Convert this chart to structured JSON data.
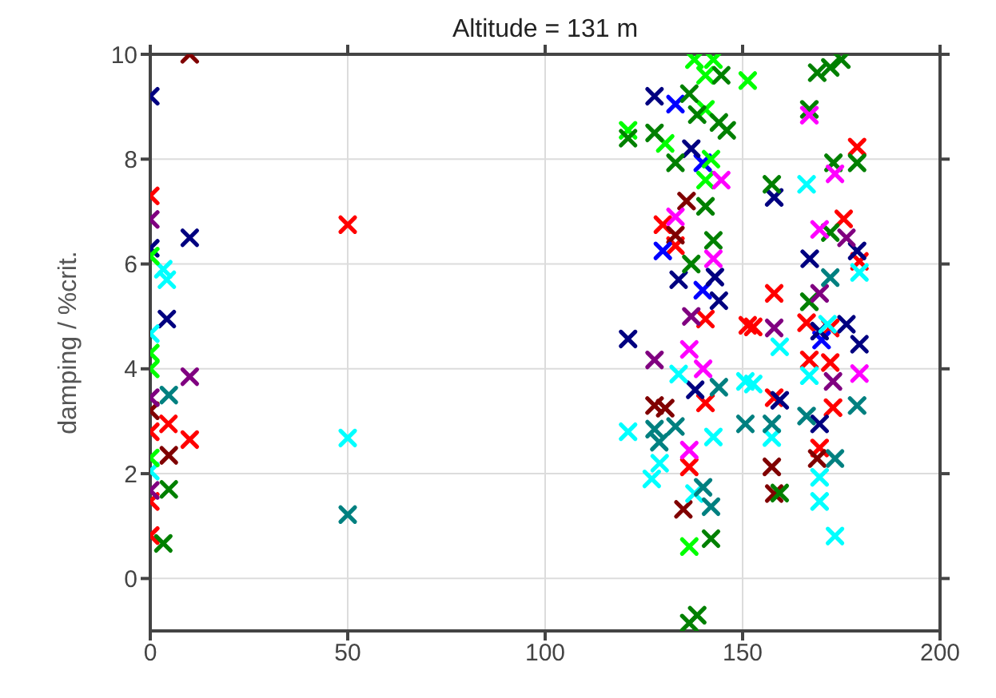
{
  "chart_data": {
    "type": "scatter",
    "title": "Altitude = 131 m",
    "ylabel": "damping / %crit.",
    "xlim": [
      0,
      200
    ],
    "xticks": [
      0,
      50,
      100,
      150,
      200
    ],
    "ylim": [
      -1,
      10
    ],
    "yticks": [
      0,
      2,
      4,
      6,
      8,
      10
    ],
    "grid": true,
    "marker": "cross",
    "series": [
      {
        "color": "#ff0000",
        "x": [
          0,
          0,
          0,
          0,
          4.6,
          10,
          50,
          129.8,
          133,
          140.6,
          151.3,
          140.6,
          136.5,
          158,
          152.7,
          166.2,
          172.2,
          175.6,
          179,
          179.6,
          166.9,
          172.2,
          158,
          172.9,
          169.5
        ],
        "values": [
          7.3,
          2.8,
          1.47,
          0.82,
          2.95,
          2.65,
          6.75,
          6.75,
          6.35,
          4.95,
          4.83,
          3.35,
          2.13,
          5.44,
          4.8,
          4.88,
          4.78,
          6.86,
          8.23,
          6.05,
          4.17,
          4.12,
          3.45,
          3.26,
          2.49
        ]
      },
      {
        "color": "#800000",
        "x": [
          10,
          0,
          4.7,
          135.8,
          133,
          127.7,
          130.4,
          135,
          157.4,
          158,
          168.9
        ],
        "values": [
          10.0,
          3.2,
          2.35,
          7.2,
          6.55,
          3.3,
          3.25,
          1.32,
          2.13,
          1.62,
          2.29
        ]
      },
      {
        "color": "#0000ff",
        "x": [
          133,
          139.9,
          129.8,
          139.9,
          170
        ],
        "values": [
          9.05,
          7.93,
          6.25,
          5.5,
          4.55
        ]
      },
      {
        "color": "#000080",
        "x": [
          0,
          10,
          0,
          4.2,
          127.7,
          137,
          133.8,
          143,
          144,
          121,
          138,
          158,
          179,
          167,
          169.5,
          176.3,
          179.6,
          159.4,
          169.5
        ],
        "values": [
          9.2,
          6.5,
          6.3,
          4.95,
          9.2,
          8.2,
          5.7,
          5.75,
          5.3,
          4.57,
          3.6,
          7.27,
          6.25,
          6.1,
          4.72,
          4.85,
          4.47,
          3.4,
          2.95
        ]
      },
      {
        "color": "#00ffff",
        "x": [
          3.3,
          4.2,
          0,
          0,
          50,
          133.8,
          121,
          142.6,
          129,
          127,
          137.8,
          150.7,
          166.2,
          179.6,
          171.5,
          159.4,
          166.9,
          152.7,
          157.4,
          169.5,
          169.5,
          173.4
        ],
        "values": [
          5.9,
          5.7,
          4.67,
          2.05,
          2.68,
          3.9,
          2.8,
          2.7,
          2.2,
          1.9,
          1.62,
          3.76,
          7.52,
          5.84,
          4.85,
          4.42,
          3.87,
          3.71,
          2.69,
          1.93,
          1.47,
          0.81
        ]
      },
      {
        "color": "#00ff00",
        "x": [
          0,
          0,
          0,
          0,
          137.8,
          142.6,
          151.3,
          140.6,
          140.6,
          121,
          130.4,
          142,
          140.6,
          136.5
        ],
        "values": [
          6.15,
          4.3,
          4.0,
          2.3,
          9.9,
          9.9,
          9.5,
          9.6,
          8.95,
          8.55,
          8.3,
          8.0,
          7.6,
          0.61
        ]
      },
      {
        "color": "#008000",
        "x": [
          4.7,
          3.3,
          144.6,
          136.5,
          138.5,
          121,
          127.7,
          144,
          146,
          133,
          140.6,
          142.6,
          137,
          142,
          138.5,
          136.5,
          168.9,
          175,
          172.2,
          166.9,
          179,
          173,
          157.4,
          172.2,
          166.9,
          159.4
        ],
        "values": [
          1.7,
          0.67,
          9.6,
          9.25,
          8.85,
          8.4,
          8.5,
          8.7,
          8.55,
          7.93,
          7.1,
          6.45,
          6.0,
          0.76,
          -0.7,
          -0.85,
          9.65,
          9.9,
          9.75,
          8.95,
          7.93,
          7.93,
          7.52,
          6.6,
          5.28,
          1.63
        ]
      },
      {
        "color": "#ff00ff",
        "x": [
          144.6,
          133,
          142.6,
          136.5,
          140,
          136.5,
          166.9,
          173.4,
          169.5,
          179.6
        ],
        "values": [
          7.6,
          6.9,
          6.1,
          4.37,
          4.0,
          2.45,
          8.84,
          7.72,
          6.66,
          3.91
        ]
      },
      {
        "color": "#800080",
        "x": [
          0,
          10,
          0,
          0,
          137,
          127.7,
          176.3,
          169.5,
          158,
          172.9
        ],
        "values": [
          6.85,
          3.85,
          3.45,
          1.68,
          5.0,
          4.17,
          6.5,
          5.44,
          4.78,
          3.76
        ]
      },
      {
        "color": "#008080",
        "x": [
          4.7,
          50,
          144,
          127.7,
          133,
          128.9,
          140,
          142,
          150.7,
          172.2,
          179,
          166.2,
          157.4,
          173.4
        ],
        "values": [
          3.5,
          1.22,
          3.65,
          2.85,
          2.9,
          2.6,
          1.74,
          1.37,
          2.95,
          5.74,
          3.3,
          3.1,
          2.95,
          2.29
        ]
      }
    ]
  }
}
